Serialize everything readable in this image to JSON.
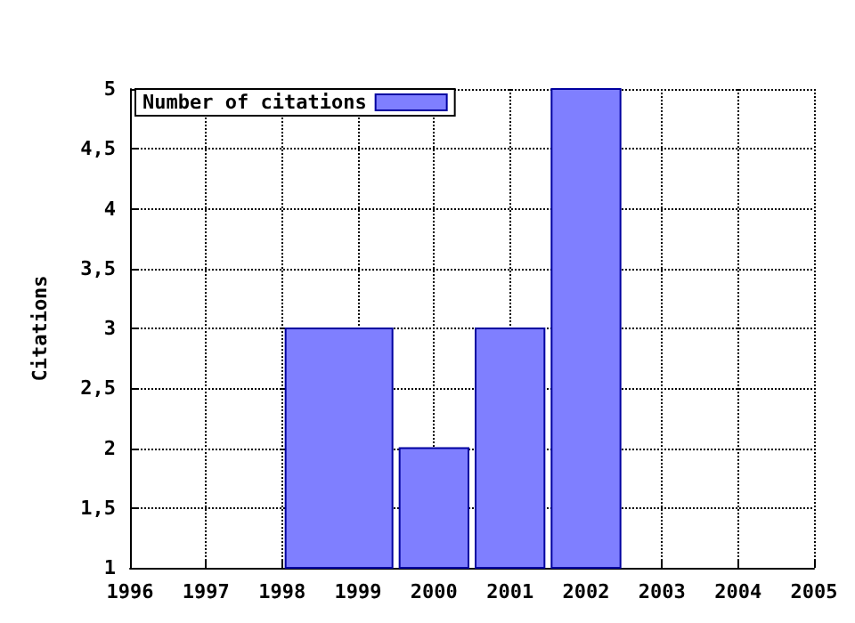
{
  "chart_data": {
    "type": "histogram",
    "ylabel": "Citations",
    "bins": [
      1998,
      1999.5,
      2000.5,
      2001.5,
      2002.5
    ],
    "series": [
      {
        "name": "Number of citations",
        "color": "#7f7fff",
        "values": [
          3,
          2,
          3,
          5
        ]
      }
    ],
    "xlim": [
      1996,
      2005
    ],
    "xticks": [
      1996,
      1997,
      1998,
      1999,
      2000,
      2001,
      2002,
      2003,
      2004,
      2005
    ],
    "ylim": [
      1,
      5
    ],
    "yticks": [
      1,
      {
        "value": 1.5,
        "label": "1,5"
      },
      2,
      {
        "value": 2.5,
        "label": "2,5"
      },
      3,
      {
        "value": 3.5,
        "label": "3,5"
      },
      4,
      {
        "value": 4.5,
        "label": "4,5"
      },
      5
    ],
    "grid": true,
    "legend": "top left"
  }
}
